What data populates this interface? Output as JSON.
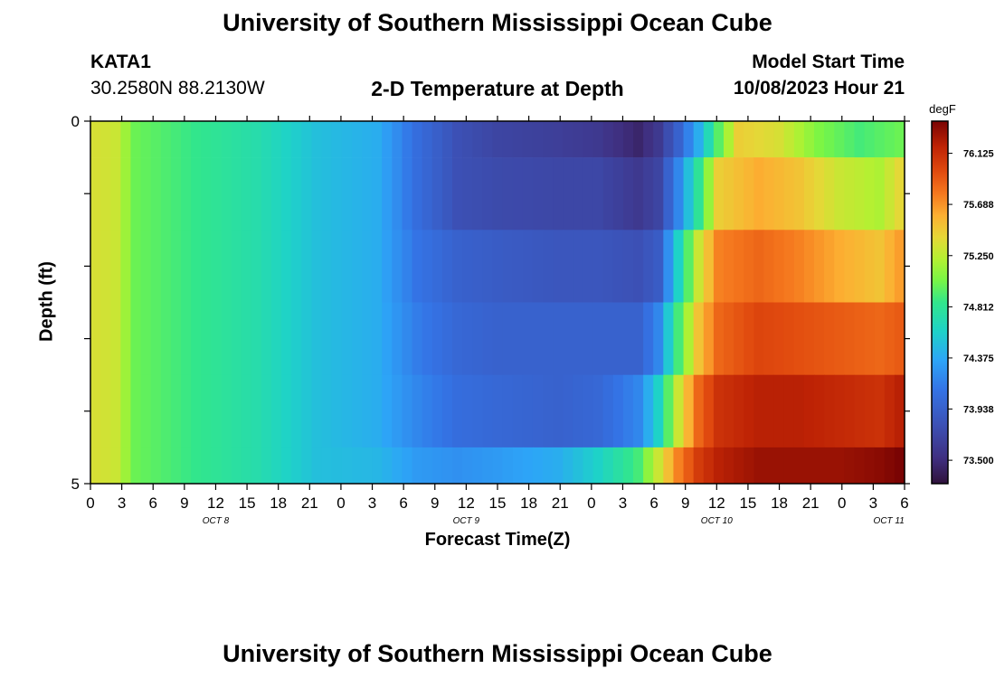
{
  "header": {
    "title": "University of Southern Mississippi Ocean Cube",
    "station": "KATA1",
    "coords": "30.2580N  88.2130W",
    "product": "2-D Temperature at Depth",
    "model_start_label": "Model Start Time",
    "model_start_value": "10/08/2023 Hour 21"
  },
  "footer": {
    "title": "University of Southern Mississippi Ocean Cube"
  },
  "chart_data": {
    "type": "heatmap",
    "title": "2-D Temperature at Depth",
    "xlabel": "Forecast Time(Z)",
    "ylabel": "Depth (ft)",
    "x_tick_labels": [
      "0",
      "3",
      "6",
      "9",
      "12",
      "15",
      "18",
      "21",
      "0",
      "3",
      "6",
      "9",
      "12",
      "15",
      "18",
      "21",
      "0",
      "3",
      "6",
      "9",
      "12",
      "15",
      "18",
      "21",
      "0",
      "3",
      "6"
    ],
    "date_labels": [
      {
        "label": "OCT 8",
        "at_tick": 4
      },
      {
        "label": "OCT 9",
        "at_tick": 12
      },
      {
        "label": "OCT 10",
        "at_tick": 20
      },
      {
        "label": "OCT 11",
        "at_tick": 25.5
      }
    ],
    "y_range": [
      0,
      5
    ],
    "y_tick_labels": [
      "0",
      "5"
    ],
    "depth_bins": 5,
    "time_steps": 81,
    "colorbar": {
      "unit": "degF",
      "min": 73.3,
      "max": 76.4,
      "tick_labels": [
        "76.125",
        "75.688",
        "75.250",
        "74.812",
        "74.375",
        "73.938",
        "73.500"
      ],
      "tick_values": [
        76.125,
        75.688,
        75.25,
        74.812,
        74.375,
        73.938,
        73.5
      ]
    },
    "profile_knots": [
      {
        "depth_bin": 0,
        "knots": [
          [
            0,
            75.35
          ],
          [
            2,
            75.3
          ],
          [
            4,
            75.0
          ],
          [
            10,
            74.85
          ],
          [
            16,
            74.72
          ],
          [
            22,
            74.5
          ],
          [
            28,
            74.4
          ],
          [
            32,
            74.05
          ],
          [
            36,
            73.8
          ],
          [
            40,
            73.7
          ],
          [
            46,
            73.65
          ],
          [
            50,
            73.6
          ],
          [
            54,
            73.45
          ],
          [
            56,
            73.6
          ],
          [
            58,
            73.95
          ],
          [
            60,
            74.4
          ],
          [
            62,
            74.95
          ],
          [
            64,
            75.45
          ],
          [
            68,
            75.35
          ],
          [
            72,
            75.05
          ],
          [
            76,
            74.9
          ],
          [
            80,
            75.0
          ]
        ]
      },
      {
        "depth_bin": 1,
        "knots": [
          [
            0,
            75.35
          ],
          [
            2,
            75.3
          ],
          [
            4,
            75.0
          ],
          [
            10,
            74.85
          ],
          [
            16,
            74.72
          ],
          [
            22,
            74.5
          ],
          [
            28,
            74.4
          ],
          [
            32,
            74.05
          ],
          [
            36,
            73.8
          ],
          [
            40,
            73.75
          ],
          [
            46,
            73.72
          ],
          [
            50,
            73.72
          ],
          [
            54,
            73.6
          ],
          [
            56,
            73.7
          ],
          [
            58,
            74.2
          ],
          [
            60,
            74.8
          ],
          [
            62,
            75.45
          ],
          [
            66,
            75.6
          ],
          [
            70,
            75.5
          ],
          [
            74,
            75.3
          ],
          [
            78,
            75.2
          ],
          [
            80,
            75.4
          ]
        ]
      },
      {
        "depth_bin": 2,
        "knots": [
          [
            0,
            75.35
          ],
          [
            2,
            75.3
          ],
          [
            4,
            75.0
          ],
          [
            10,
            74.85
          ],
          [
            16,
            74.72
          ],
          [
            22,
            74.5
          ],
          [
            28,
            74.4
          ],
          [
            32,
            74.1
          ],
          [
            36,
            73.95
          ],
          [
            40,
            73.9
          ],
          [
            46,
            73.85
          ],
          [
            50,
            73.85
          ],
          [
            54,
            73.8
          ],
          [
            56,
            73.9
          ],
          [
            58,
            74.6
          ],
          [
            60,
            75.3
          ],
          [
            62,
            75.75
          ],
          [
            66,
            75.85
          ],
          [
            70,
            75.75
          ],
          [
            74,
            75.6
          ],
          [
            78,
            75.5
          ],
          [
            80,
            75.65
          ]
        ]
      },
      {
        "depth_bin": 3,
        "knots": [
          [
            0,
            75.35
          ],
          [
            2,
            75.3
          ],
          [
            4,
            75.0
          ],
          [
            10,
            74.85
          ],
          [
            16,
            74.72
          ],
          [
            22,
            74.5
          ],
          [
            28,
            74.4
          ],
          [
            32,
            74.15
          ],
          [
            36,
            74.0
          ],
          [
            40,
            73.95
          ],
          [
            46,
            73.95
          ],
          [
            50,
            73.95
          ],
          [
            54,
            73.95
          ],
          [
            56,
            74.2
          ],
          [
            58,
            74.9
          ],
          [
            60,
            75.5
          ],
          [
            62,
            75.85
          ],
          [
            66,
            76.0
          ],
          [
            70,
            75.95
          ],
          [
            74,
            75.9
          ],
          [
            78,
            75.85
          ],
          [
            80,
            75.9
          ]
        ]
      },
      {
        "depth_bin": 4,
        "knots": [
          [
            0,
            75.35
          ],
          [
            2,
            75.3
          ],
          [
            4,
            75.0
          ],
          [
            10,
            74.85
          ],
          [
            16,
            74.72
          ],
          [
            22,
            74.5
          ],
          [
            28,
            74.4
          ],
          [
            32,
            74.2
          ],
          [
            36,
            74.05
          ],
          [
            40,
            74.0
          ],
          [
            46,
            73.95
          ],
          [
            50,
            74.0
          ],
          [
            54,
            74.2
          ],
          [
            56,
            74.6
          ],
          [
            58,
            75.3
          ],
          [
            60,
            75.85
          ],
          [
            62,
            76.1
          ],
          [
            66,
            76.2
          ],
          [
            70,
            76.2
          ],
          [
            74,
            76.15
          ],
          [
            78,
            76.1
          ],
          [
            80,
            76.2
          ]
        ]
      },
      {
        "depth_bin": 5,
        "knots": [
          [
            0,
            75.35
          ],
          [
            2,
            75.3
          ],
          [
            4,
            75.0
          ],
          [
            10,
            74.85
          ],
          [
            16,
            74.72
          ],
          [
            22,
            74.5
          ],
          [
            28,
            74.45
          ],
          [
            32,
            74.3
          ],
          [
            36,
            74.25
          ],
          [
            40,
            74.3
          ],
          [
            46,
            74.4
          ],
          [
            50,
            74.6
          ],
          [
            54,
            74.9
          ],
          [
            56,
            75.3
          ],
          [
            58,
            75.75
          ],
          [
            60,
            76.05
          ],
          [
            62,
            76.2
          ],
          [
            66,
            76.3
          ],
          [
            70,
            76.3
          ],
          [
            74,
            76.3
          ],
          [
            78,
            76.35
          ],
          [
            80,
            76.4
          ]
        ]
      }
    ]
  }
}
